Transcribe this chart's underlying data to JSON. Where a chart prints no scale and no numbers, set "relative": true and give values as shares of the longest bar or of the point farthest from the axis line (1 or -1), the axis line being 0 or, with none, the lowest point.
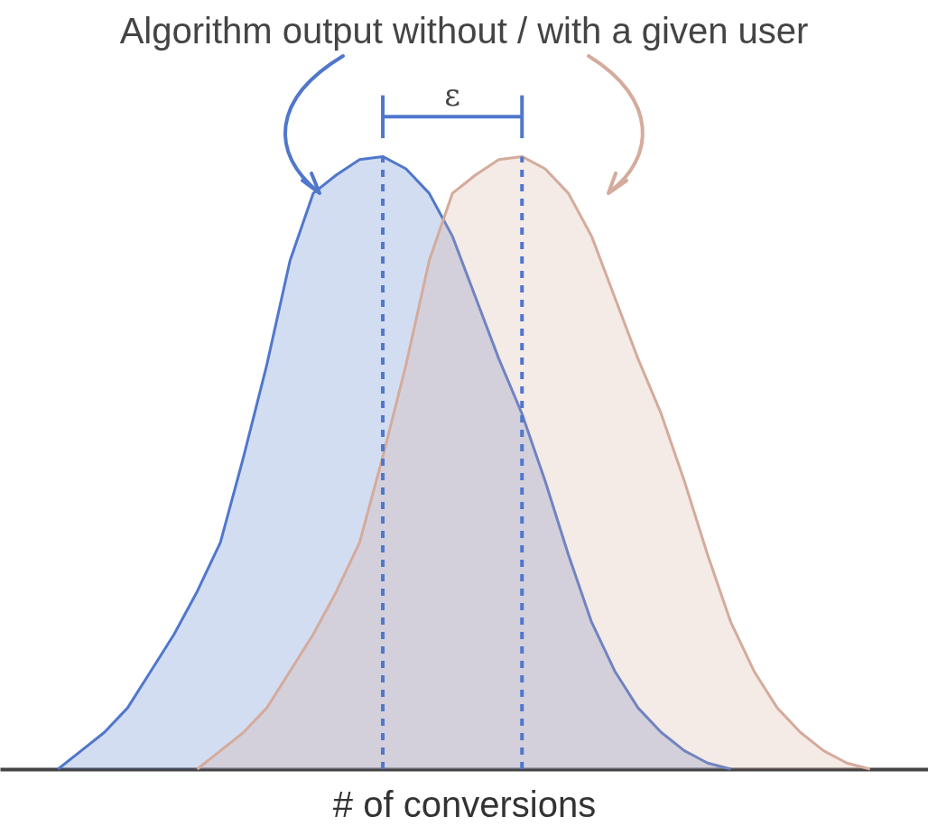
{
  "chart_data": {
    "type": "area",
    "title": "Algorithm output without / with a given user",
    "xlabel": "# of conversions",
    "relative": true,
    "categories": [
      null,
      null,
      null,
      null,
      null,
      null,
      null,
      null,
      null,
      null,
      null,
      null,
      null,
      null,
      null,
      null,
      null,
      null,
      null,
      null,
      null,
      null,
      null,
      null,
      null,
      null,
      null,
      null,
      null,
      null,
      null,
      null,
      null,
      null,
      null,
      null,
      null,
      null,
      null,
      null
    ],
    "series": [
      {
        "color": "#5077cc",
        "values": [
          null,
          null,
          0,
          0.03,
          0.06,
          0.1,
          0.16,
          0.22,
          0.29,
          0.37,
          0.51,
          0.66,
          0.83,
          0.94,
          0.97,
          0.995,
          1,
          0.98,
          0.94,
          0.87,
          0.77,
          0.67,
          0.58,
          0.47,
          0.35,
          0.24,
          0.16,
          0.1,
          0.06,
          0.03,
          0.01,
          0,
          null,
          null,
          null,
          null,
          null,
          null,
          null,
          null
        ]
      },
      {
        "color": "#d4ab9c",
        "values": [
          null,
          null,
          null,
          null,
          null,
          null,
          null,
          null,
          0,
          0.03,
          0.06,
          0.1,
          0.16,
          0.22,
          0.29,
          0.37,
          0.51,
          0.66,
          0.83,
          0.94,
          0.97,
          0.995,
          1,
          0.98,
          0.94,
          0.87,
          0.77,
          0.67,
          0.58,
          0.47,
          0.35,
          0.24,
          0.16,
          0.1,
          0.06,
          0.03,
          0.01,
          0,
          null,
          null
        ]
      }
    ],
    "annotations": [
      "ε"
    ]
  }
}
